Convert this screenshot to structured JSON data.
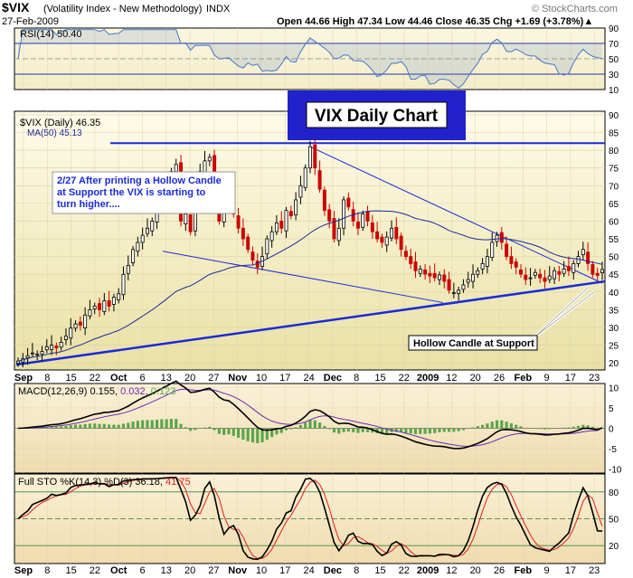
{
  "header": {
    "symbol": "$VIX",
    "name": "(Volatility Index - New Methodology)",
    "exchange": "INDX",
    "date": "27-Feb-2009",
    "brand": "© StockCharts.com",
    "ohlc": "Open 44.66  High 47.34  Low 44.46  Close 46.35  Chg +1.69 (+3.78%)▲"
  },
  "colors": {
    "panel_bg_top": "#fdf8e4",
    "panel_bg_bottom": "#e8e0a8",
    "up_candle": "#000000",
    "down_candle": "#cc0000",
    "ma_line": "#1b2a9e",
    "trend_line": "#1a2ad8",
    "rsi_line": "#4477cc",
    "macd_line": "#000000",
    "signal_line": "#6a2ab0",
    "histogram": "#5aa64a",
    "sto_k": "#000000",
    "sto_d": "#e02020"
  },
  "x_axis_labels": [
    "Sep",
    "8",
    "15",
    "22",
    "Oct",
    "6",
    "13",
    "20",
    "27",
    "Nov",
    "10",
    "17",
    "24",
    "Dec",
    "8",
    "15",
    "22",
    "2009",
    "12",
    "20",
    "26",
    "Feb",
    "9",
    "17",
    "23"
  ],
  "x_axis_bold": [
    "Sep",
    "Oct",
    "Nov",
    "Dec",
    "2009",
    "Feb"
  ],
  "panels": {
    "rsi": {
      "label": "RSI(14) 50.40",
      "ticks": [
        "90",
        "70",
        "50",
        "30",
        "10"
      ],
      "ylim": [
        10,
        90
      ],
      "ref_lines": [
        70,
        50,
        30
      ]
    },
    "price": {
      "legend_price": "$VIX (Daily) 46.35",
      "legend_ma": "MA(50) 45.13",
      "ticks": [
        "90",
        "85",
        "80",
        "75",
        "70",
        "65",
        "60",
        "55",
        "50",
        "45",
        "40",
        "35",
        "30",
        "25",
        "20"
      ],
      "ylim": [
        18,
        91
      ],
      "title_box": "VIX Daily Chart",
      "annotation_1": [
        "2/27  After printing a Hollow Candle",
        "at Support the VIX is starting to",
        "turn higher...."
      ],
      "annotation_2": "Hollow Candle at Support"
    },
    "macd": {
      "label": "MACD(12,26,9) 0.155, 0.032, 0.123",
      "label_main": "MACD(12,26,9) 0.155,",
      "label_signal": "0.032,",
      "label_hist": "0.123",
      "ticks": [
        "10",
        "5",
        "0",
        "-5",
        "-10"
      ],
      "ylim": [
        -11,
        11
      ]
    },
    "sto": {
      "label_main": "Full STO %K(14,3) %D(3) 36.18,",
      "label_d": "41.75",
      "ticks": [
        "80",
        "50",
        "20"
      ],
      "ylim": [
        0,
        100
      ],
      "ref_lines": [
        80,
        50,
        20
      ]
    }
  },
  "chart_data": {
    "type": "candlestick",
    "title": "VIX Daily Chart",
    "x_start": "2008-09-02",
    "x_end": "2009-02-27",
    "price_close": [
      20.5,
      21.2,
      22.0,
      22.8,
      22.5,
      23.2,
      24.5,
      25.0,
      24.2,
      25.8,
      27.5,
      29.8,
      31.0,
      30.6,
      33.5,
      35.0,
      36.0,
      35.0,
      37.5,
      36.0,
      38.5,
      39.5,
      45.0,
      47.5,
      52.0,
      54.0,
      56.0,
      58.0,
      60.0,
      64.0,
      68.0,
      69.5,
      74.0,
      76.0,
      60.0,
      62.0,
      57.0,
      70.0,
      74.0,
      77.0,
      78.0,
      65.0,
      60.0,
      65.0,
      70.0,
      62.0,
      58.0,
      55.0,
      52.0,
      49.0,
      47.0,
      50.0,
      55.0,
      57.0,
      59.5,
      58.0,
      63.0,
      61.5,
      66.0,
      70.0,
      75.0,
      81.0,
      75.0,
      69.0,
      63.0,
      60.0,
      55.0,
      58.0,
      66.0,
      64.0,
      60.0,
      58.0,
      62.0,
      60.0,
      57.0,
      55.0,
      54.0,
      55.5,
      58.0,
      55.0,
      52.0,
      50.0,
      48.0,
      46.0,
      46.5,
      45.0,
      44.5,
      44.0,
      44.8,
      43.0,
      40.5,
      39.8,
      40.5,
      42.0,
      43.5,
      45.0,
      46.0,
      48.0,
      50.0,
      54.0,
      56.0,
      54.0,
      50.0,
      48.0,
      47.0,
      45.0,
      43.5,
      44.0,
      45.5,
      44.0,
      43.0,
      44.5,
      46.0,
      45.0,
      46.5,
      46.0,
      48.0,
      50.0,
      52.0,
      48.0,
      45.0,
      44.66,
      46.35
    ],
    "ma50_last": 45.13,
    "rsi_last": 50.4,
    "macd": {
      "macd": 0.155,
      "signal": 0.032,
      "histogram": 0.123
    },
    "full_sto": {
      "k": 36.18,
      "d": 41.75
    }
  }
}
